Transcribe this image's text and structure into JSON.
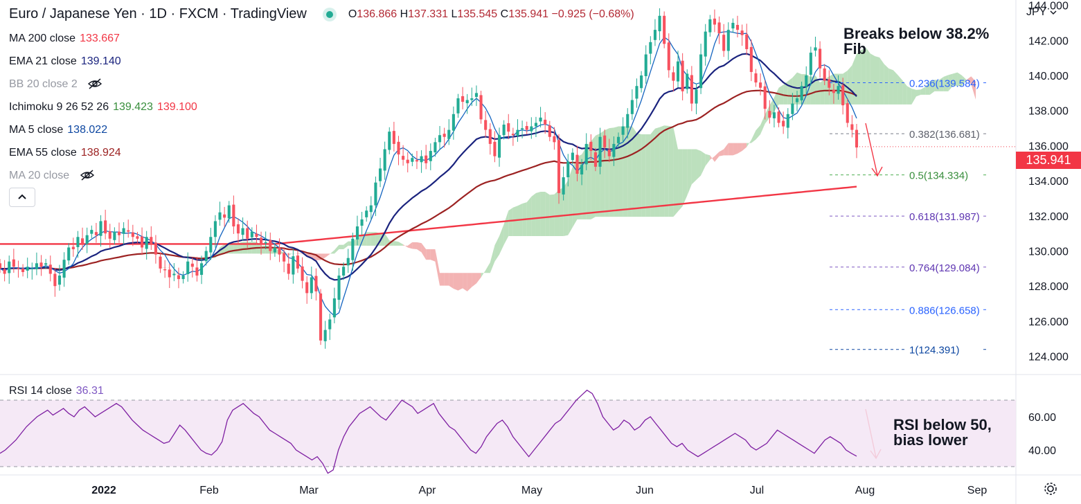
{
  "header": {
    "title": "Euro / Japanese Yen · 1D · FXCM · TradingView",
    "ohlc": {
      "o_label": "O",
      "o": "136.866",
      "h_label": "H",
      "h": "137.331",
      "l_label": "L",
      "l": "135.545",
      "c_label": "C",
      "c": "135.941",
      "change": "−0.925 (−0.68%)"
    }
  },
  "indicators": [
    {
      "label": "MA 200 close",
      "value": "133.667",
      "color": "#f23645"
    },
    {
      "label": "EMA 21 close",
      "value": "139.140",
      "color": "#1a237e"
    },
    {
      "label": "BB 20 close 2",
      "value": "",
      "color": "#9598a1",
      "hidden": true
    },
    {
      "label": "Ichimoku 9 26 52 26",
      "value": "139.423",
      "value2": "139.100",
      "color": "#388e3c",
      "color2": "#f23645"
    },
    {
      "label": "MA 5 close",
      "value": "138.022",
      "color": "#0d47a1"
    },
    {
      "label": "EMA 55 close",
      "value": "138.924",
      "color": "#b22833"
    },
    {
      "label": "MA 20 close",
      "value": "",
      "color": "#9598a1",
      "hidden": true
    }
  ],
  "currency": "JPY",
  "last_price": "135.941",
  "annotations": {
    "fib_break": [
      "Breaks below 38.2%",
      "Fib"
    ],
    "rsi_note": [
      "RSI below 50,",
      "bias lower"
    ]
  },
  "rsi": {
    "label": "RSI 14 close",
    "value": "36.31"
  },
  "colors": {
    "up": "#26a69a",
    "down": "#f23645",
    "candle_up": "#22ab94",
    "candle_down": "#f7525f",
    "ma200": "#f23645",
    "ema21": "#1a237e",
    "ma5": "#1565c0",
    "ema55": "#9c2222",
    "cloud_bull": "#a5d6a7",
    "cloud_bear": "#ef9a9a",
    "rsi": "#7e1fa2",
    "rsi_band": "#f3e5f5"
  },
  "chart_data": [
    {
      "type": "candlestick",
      "title": "Euro / Japanese Yen · 1D · FXCM",
      "x_ticks": [
        "2022",
        "Feb",
        "Mar",
        "Apr",
        "May",
        "Jun",
        "Jul",
        "Aug",
        "Sep"
      ],
      "y_ticks": [
        "124.000",
        "126.000",
        "128.000",
        "130.000",
        "132.000",
        "134.000",
        "136.000",
        "138.000",
        "140.000",
        "142.000",
        "144.000"
      ],
      "ylim": [
        123.0,
        144.3
      ],
      "close_series": [
        129.0,
        128.7,
        129.4,
        129.1,
        129.0,
        128.8,
        129.1,
        129.0,
        129.3,
        129.1,
        129.3,
        128.7,
        128.0,
        128.6,
        129.5,
        130.2,
        130.1,
        130.8,
        130.4,
        130.9,
        131.2,
        130.9,
        131.7,
        131.0,
        130.7,
        131.1,
        130.9,
        131.3,
        131.1,
        130.8,
        130.7,
        130.2,
        130.8,
        130.4,
        129.8,
        129.0,
        128.9,
        128.5,
        128.7,
        128.4,
        128.6,
        129.4,
        129.1,
        128.6,
        129.3,
        130.0,
        130.8,
        131.7,
        132.2,
        131.9,
        132.6,
        131.4,
        131.0,
        131.3,
        130.7,
        131.1,
        130.8,
        130.4,
        130.5,
        130.0,
        130.2,
        129.8,
        129.4,
        128.7,
        129.7,
        129.0,
        128.3,
        127.6,
        128.5,
        127.7,
        124.9,
        125.5,
        126.1,
        127.3,
        128.6,
        129.1,
        129.6,
        130.7,
        131.4,
        131.8,
        132.3,
        132.6,
        133.9,
        134.7,
        135.8,
        136.8,
        136.1,
        135.5,
        135.2,
        135.0,
        135.3,
        135.1,
        135.4,
        135.0,
        135.7,
        136.2,
        136.6,
        136.5,
        136.9,
        137.8,
        138.7,
        138.5,
        138.6,
        138.7,
        139.0,
        137.5,
        136.9,
        136.1,
        135.4,
        136.6,
        137.2,
        136.8,
        136.6,
        136.9,
        137.0,
        136.9,
        137.1,
        137.3,
        137.6,
        137.2,
        136.5,
        136.2,
        133.3,
        134.2,
        135.1,
        135.6,
        134.4,
        134.9,
        136.1,
        135.7,
        134.8,
        136.5,
        135.9,
        135.4,
        136.1,
        136.5,
        137.1,
        137.8,
        138.6,
        139.4,
        140.0,
        141.2,
        141.9,
        142.6,
        143.4,
        141.8,
        140.3,
        139.7,
        140.8,
        139.1,
        140.1,
        138.4,
        139.2,
        141.2,
        142.5,
        143.2,
        142.9,
        142.4,
        141.4,
        142.6,
        143.0,
        142.6,
        142.3,
        141.5,
        140.2,
        139.6,
        139.3,
        138.1,
        137.6,
        137.9,
        137.3,
        137.1,
        137.8,
        138.4,
        138.7,
        139.4,
        140.0,
        141.3,
        141.6,
        140.4,
        139.7,
        139.3,
        139.0,
        139.4,
        138.3,
        137.3,
        136.9,
        135.9
      ],
      "ma200_end": 133.667,
      "ema21_end": 139.14,
      "ema55_end": 138.924,
      "ma5_end": 138.022,
      "fib_levels": [
        {
          "label": "0.236(139.584)",
          "value": 139.584
        },
        {
          "label": "0.382(136.681)",
          "value": 136.681
        },
        {
          "label": "0.5(134.334)",
          "value": 134.334
        },
        {
          "label": "0.618(131.987)",
          "value": 131.987
        },
        {
          "label": "0.764(129.084)",
          "value": 129.084
        },
        {
          "label": "0.886(126.658)",
          "value": 126.658
        },
        {
          "label": "1(124.391)",
          "value": 124.391
        }
      ],
      "last": 135.941
    },
    {
      "type": "line",
      "title": "RSI 14 close",
      "y_ticks": [
        "40.00",
        "60.00"
      ],
      "ylim": [
        25,
        85
      ],
      "bands": [
        30,
        70
      ],
      "values": [
        38,
        40,
        43,
        46,
        50,
        54,
        57,
        60,
        62,
        64,
        61,
        63,
        65,
        62,
        60,
        64,
        66,
        63,
        60,
        62,
        64,
        66,
        68,
        66,
        62,
        58,
        55,
        52,
        50,
        48,
        46,
        44,
        45,
        50,
        55,
        52,
        48,
        44,
        40,
        38,
        37,
        40,
        45,
        58,
        64,
        66,
        68,
        65,
        62,
        60,
        56,
        52,
        50,
        48,
        46,
        44,
        40,
        38,
        36,
        34,
        36,
        32,
        26,
        28,
        40,
        48,
        54,
        58,
        62,
        64,
        66,
        63,
        60,
        58,
        62,
        66,
        70,
        68,
        66,
        62,
        64,
        66,
        68,
        62,
        58,
        54,
        52,
        48,
        44,
        40,
        38,
        42,
        48,
        52,
        56,
        58,
        54,
        48,
        44,
        40,
        36,
        40,
        44,
        48,
        52,
        56,
        58,
        62,
        66,
        70,
        73,
        76,
        74,
        68,
        60,
        56,
        52,
        54,
        58,
        56,
        52,
        54,
        58,
        60,
        56,
        52,
        48,
        44,
        42,
        44,
        40,
        38,
        36,
        38,
        40,
        42,
        44,
        46,
        48,
        50,
        48,
        46,
        42,
        40,
        42,
        44,
        48,
        52,
        50,
        48,
        46,
        44,
        42,
        40,
        38,
        42,
        46,
        48,
        46,
        44,
        40,
        38,
        36.31
      ]
    }
  ]
}
